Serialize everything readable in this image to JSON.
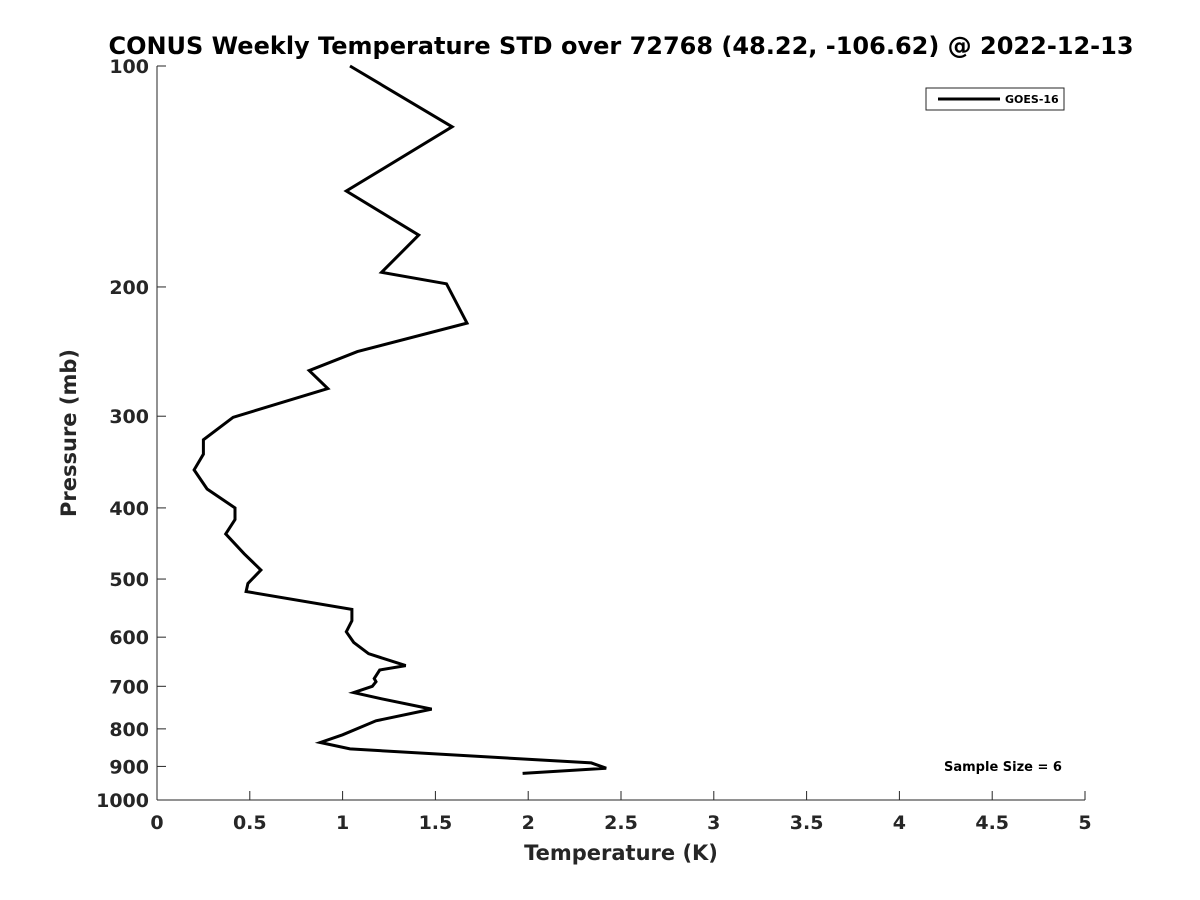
{
  "chart_data": {
    "type": "line",
    "title": "CONUS Weekly Temperature STD over 72768 (48.22, -106.62) @ 2022-12-13",
    "xlabel": "Temperature (K)",
    "ylabel": "Pressure (mb)",
    "xlim": [
      0,
      5
    ],
    "ylim": [
      1000,
      100
    ],
    "y_scale": "log",
    "y_reversed": true,
    "grid": false,
    "legend_position": "top-right",
    "x_ticks": [
      "0",
      "0.5",
      "1",
      "1.5",
      "2",
      "2.5",
      "3",
      "3.5",
      "4",
      "4.5",
      "5"
    ],
    "x_tick_values": [
      0,
      0.5,
      1,
      1.5,
      2,
      2.5,
      3,
      3.5,
      4,
      4.5,
      5
    ],
    "y_ticks": [
      "100",
      "200",
      "300",
      "400",
      "500",
      "600",
      "700",
      "800",
      "900",
      "1000"
    ],
    "y_tick_values": [
      100,
      200,
      300,
      400,
      500,
      600,
      700,
      800,
      900,
      1000
    ],
    "series": [
      {
        "name": "GOES-16",
        "color": "#000000",
        "x": [
          1.04,
          1.59,
          1.02,
          1.41,
          1.21,
          1.56,
          1.67,
          1.08,
          0.82,
          0.92,
          0.41,
          0.25,
          0.25,
          0.2,
          0.27,
          0.42,
          0.42,
          0.37,
          0.47,
          0.56,
          0.49,
          0.48,
          1.05,
          1.05,
          1.02,
          1.06,
          1.14,
          1.34,
          1.2,
          1.17,
          1.18,
          1.16,
          1.06,
          1.21,
          1.48,
          1.18,
          1.0,
          0.88,
          1.04,
          2.34,
          2.42,
          1.97
        ],
        "y": [
          100,
          121,
          148,
          170,
          191,
          198,
          224,
          245,
          260,
          275,
          301,
          323,
          338,
          355,
          377,
          400,
          415,
          434,
          462,
          486,
          507,
          520,
          550,
          570,
          590,
          610,
          632,
          656,
          665,
          683,
          690,
          700,
          714,
          728,
          752,
          780,
          815,
          835,
          852,
          890,
          905,
          920
        ]
      }
    ],
    "annotations": [
      "Sample Size = 6"
    ]
  }
}
